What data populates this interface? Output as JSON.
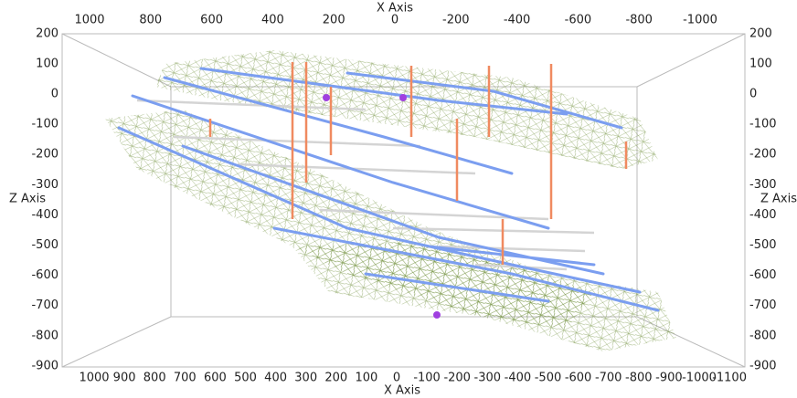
{
  "top_axis": {
    "title": "X Axis",
    "ticks": [
      1000,
      800,
      600,
      400,
      200,
      0,
      -200,
      -400,
      -600,
      -800,
      -1000
    ]
  },
  "bottom_axis": {
    "title": "X Axis",
    "ticks": [
      1000,
      900,
      800,
      700,
      600,
      500,
      400,
      300,
      200,
      100,
      0,
      -100,
      -200,
      -300,
      -400,
      -500,
      -600,
      -700,
      -800,
      -900,
      -1000,
      -1100
    ]
  },
  "left_axis": {
    "title": "Z Axis",
    "ticks": [
      200,
      100,
      0,
      -100,
      -200,
      -300,
      -400,
      -500,
      -600,
      -700,
      -800,
      -900
    ]
  },
  "right_axis": {
    "title": "Z Axis",
    "ticks": [
      200,
      100,
      0,
      -100,
      -200,
      -300,
      -400,
      -500,
      -600,
      -700,
      -800,
      -900
    ]
  }
}
